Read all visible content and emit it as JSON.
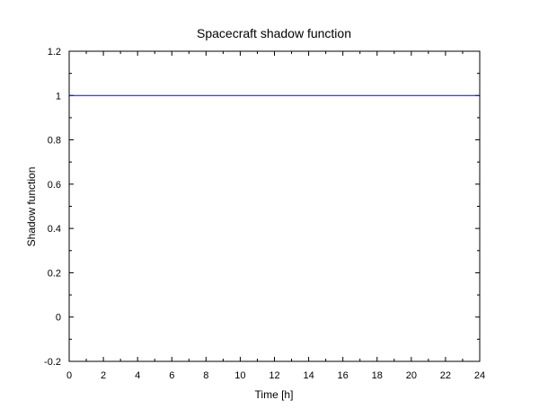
{
  "chart_data": {
    "type": "line",
    "title": "Spacecraft shadow function",
    "xlabel": "Time [h]",
    "ylabel": "Shadow function",
    "xlim": [
      0,
      24
    ],
    "ylim": [
      -0.2,
      1.2
    ],
    "x_ticks": [
      0,
      2,
      4,
      6,
      8,
      10,
      12,
      14,
      16,
      18,
      20,
      22,
      24
    ],
    "y_ticks": [
      -0.2,
      0,
      0.2,
      0.4,
      0.6,
      0.8,
      1,
      1.2
    ],
    "x_tick_labels": [
      "0",
      "2",
      "4",
      "6",
      "8",
      "10",
      "12",
      "14",
      "16",
      "18",
      "20",
      "22",
      "24"
    ],
    "y_tick_labels": [
      "-0.2",
      "0",
      "0.2",
      "0.4",
      "0.6",
      "0.8",
      "1",
      "1.2"
    ],
    "grid": false,
    "legend": "none",
    "series": [
      {
        "x": [
          0,
          24
        ],
        "y": [
          1,
          1
        ],
        "color": "#0000ff"
      }
    ]
  }
}
